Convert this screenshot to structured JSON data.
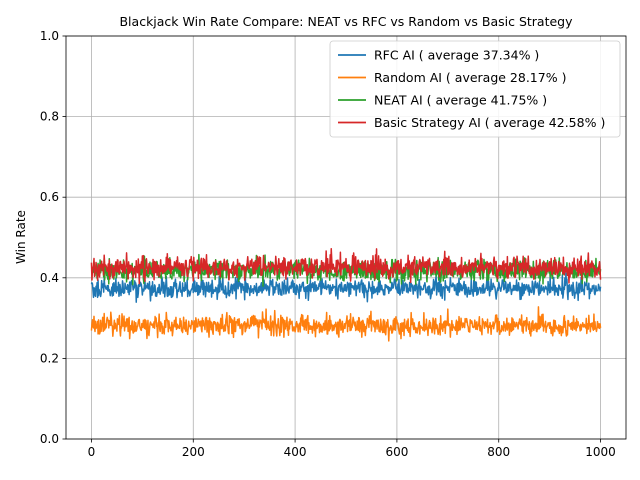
{
  "chart_data": {
    "type": "line",
    "title": "Blackjack Win Rate Compare: NEAT vs RFC vs Random vs Basic Strategy",
    "xlabel": "",
    "ylabel": "Win Rate",
    "xlim": [
      -50,
      1050
    ],
    "ylim": [
      0.0,
      1.0
    ],
    "xticks": [
      0,
      200,
      400,
      600,
      800,
      1000
    ],
    "yticks": [
      0.0,
      0.2,
      0.4,
      0.6,
      0.8,
      1.0
    ],
    "xtick_labels": [
      "0",
      "200",
      "400",
      "600",
      "800",
      "1000"
    ],
    "ytick_labels": [
      "0.0",
      "0.2",
      "0.4",
      "0.6",
      "0.8",
      "1.0"
    ],
    "grid": true,
    "legend_position": "top-right",
    "x_start": 0,
    "x_end": 1000,
    "series": [
      {
        "name": "RFC AI ( average 37.34% )",
        "color": "#1f77b4",
        "mean": 0.3734,
        "noise": 0.012
      },
      {
        "name": "Random AI ( average 28.17% )",
        "color": "#ff7f0e",
        "mean": 0.2817,
        "noise": 0.013
      },
      {
        "name": "NEAT AI ( average 41.75% )",
        "color": "#2ca02c",
        "mean": 0.4175,
        "noise": 0.013
      },
      {
        "name": "Basic Strategy AI ( average 42.58% )",
        "color": "#d62728",
        "mean": 0.4258,
        "noise": 0.013
      }
    ]
  }
}
